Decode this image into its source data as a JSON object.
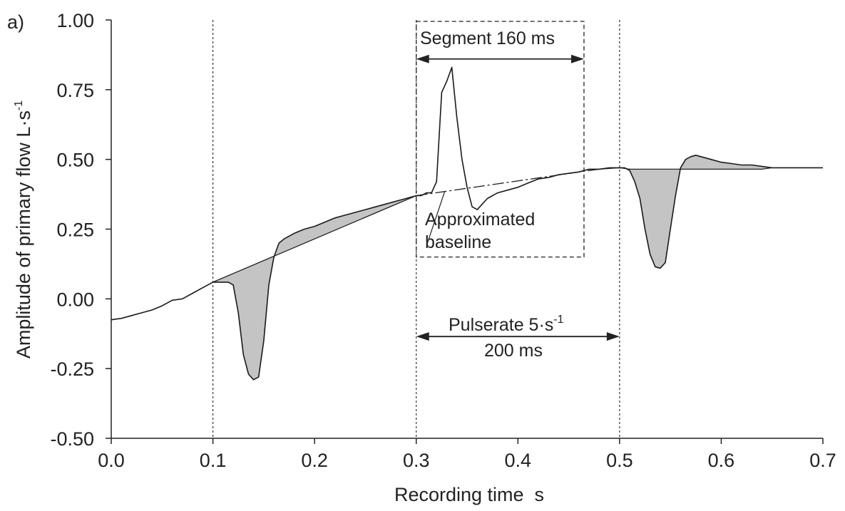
{
  "chart_data": {
    "type": "line",
    "panel_label": "a)",
    "xlabel": "Recording time  s",
    "ylabel_main": "Amplitude of primary flow L·s",
    "ylabel_sup": "-1",
    "xlim": [
      0.0,
      0.7
    ],
    "ylim": [
      -0.5,
      1.0
    ],
    "x_ticks": [
      0.0,
      0.1,
      0.2,
      0.3,
      0.4,
      0.5,
      0.6,
      0.7
    ],
    "x_tick_labels": [
      "0.0",
      "0.1",
      "0.2",
      "0.3",
      "0.4",
      "0.5",
      "0.6",
      "0.7"
    ],
    "y_ticks": [
      -0.5,
      -0.25,
      0.0,
      0.25,
      0.5,
      0.75,
      1.0
    ],
    "y_tick_labels": [
      "-0.50",
      "-0.25",
      "0.00",
      "0.25",
      "0.50",
      "0.75",
      "1.00"
    ],
    "vertical_lines_x": [
      0.1,
      0.3,
      0.5
    ],
    "series": [
      {
        "x": [
          0.0,
          0.01,
          0.02,
          0.03,
          0.04,
          0.05,
          0.06,
          0.07,
          0.08,
          0.09,
          0.1,
          0.105,
          0.11,
          0.115,
          0.12,
          0.125,
          0.13,
          0.135,
          0.14,
          0.145,
          0.15,
          0.155,
          0.16,
          0.165,
          0.17,
          0.18,
          0.19,
          0.2,
          0.21,
          0.22,
          0.23,
          0.24,
          0.25,
          0.26,
          0.27,
          0.28,
          0.29,
          0.3,
          0.305,
          0.31,
          0.315,
          0.32,
          0.325,
          0.33,
          0.335,
          0.34,
          0.345,
          0.35,
          0.355,
          0.36,
          0.365,
          0.37,
          0.38,
          0.39,
          0.4,
          0.41,
          0.42,
          0.43,
          0.44,
          0.45,
          0.46,
          0.465,
          0.47,
          0.48,
          0.49,
          0.5,
          0.505,
          0.51,
          0.515,
          0.52,
          0.525,
          0.53,
          0.535,
          0.54,
          0.545,
          0.55,
          0.555,
          0.56,
          0.565,
          0.57,
          0.575,
          0.58,
          0.59,
          0.6,
          0.61,
          0.62,
          0.63,
          0.64,
          0.65,
          0.66,
          0.67,
          0.68,
          0.69,
          0.7
        ],
        "y": [
          -0.075,
          -0.07,
          -0.06,
          -0.05,
          -0.04,
          -0.025,
          -0.005,
          0.0,
          0.02,
          0.04,
          0.06,
          0.06,
          0.06,
          0.06,
          0.05,
          -0.05,
          -0.2,
          -0.27,
          -0.29,
          -0.28,
          -0.15,
          0.05,
          0.15,
          0.2,
          0.215,
          0.235,
          0.25,
          0.26,
          0.275,
          0.29,
          0.3,
          0.31,
          0.32,
          0.33,
          0.34,
          0.35,
          0.36,
          0.37,
          0.37,
          0.38,
          0.38,
          0.42,
          0.74,
          0.78,
          0.83,
          0.65,
          0.5,
          0.4,
          0.33,
          0.32,
          0.34,
          0.36,
          0.38,
          0.39,
          0.4,
          0.415,
          0.43,
          0.435,
          0.445,
          0.45,
          0.455,
          0.46,
          0.465,
          0.465,
          0.47,
          0.47,
          0.47,
          0.46,
          0.42,
          0.36,
          0.25,
          0.16,
          0.115,
          0.11,
          0.13,
          0.25,
          0.37,
          0.47,
          0.5,
          0.51,
          0.515,
          0.51,
          0.5,
          0.49,
          0.485,
          0.48,
          0.48,
          0.475,
          0.47,
          0.47,
          0.47,
          0.47,
          0.47,
          0.47
        ]
      }
    ],
    "baseline": {
      "x": [
        0.1,
        0.3,
        0.47,
        0.48,
        0.5,
        0.51,
        0.52,
        0.53,
        0.54,
        0.55,
        0.56,
        0.57,
        0.58,
        0.59,
        0.6,
        0.61,
        0.62,
        0.63,
        0.64,
        0.65
      ],
      "y": [
        0.06,
        0.37,
        0.46,
        0.465,
        0.47,
        0.465,
        0.465,
        0.465,
        0.465,
        0.465,
        0.465,
        0.465,
        0.465,
        0.465,
        0.465,
        0.465,
        0.465,
        0.465,
        0.465,
        0.47
      ]
    },
    "annotations": {
      "segment_label": "Segment 160 ms",
      "baseline_label_line1": "Approximated",
      "baseline_label_line2": "baseline",
      "pulse_label_main": "Pulserate 5·s",
      "pulse_label_sup": "-1",
      "pulse_label_line2": "200 ms"
    },
    "segment_box": {
      "x_start": 0.3,
      "x_end": 0.465,
      "y_top": 1.0,
      "y_bottom": 0.15
    },
    "segment_arrow": {
      "x_start": 0.3,
      "x_end": 0.465,
      "y": 0.86
    },
    "pulse_arrow": {
      "x_start": 0.3,
      "x_end": 0.5,
      "y": -0.135
    },
    "grid": false,
    "legend": "none"
  }
}
